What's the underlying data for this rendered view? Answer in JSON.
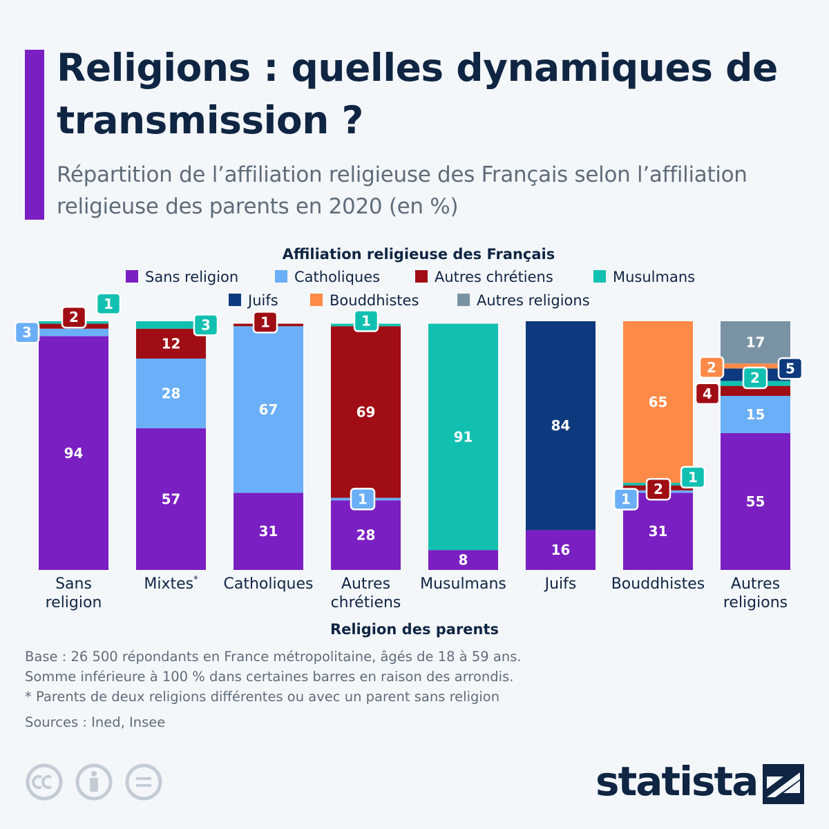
{
  "title": "Religions : quelles dynamiques de transmission ?",
  "subtitle": "Répartition de l’affiliation religieuse des Français selon l’affiliation religieuse des parents en 2020 (en %)",
  "chart_data": {
    "type": "bar",
    "stacked": true,
    "orientation": "vertical",
    "legend_title": "Affiliation religieuse des Français",
    "xlabel": "Religion des parents",
    "ylabel": "",
    "ylim": [
      0,
      100
    ],
    "grid": false,
    "categories": [
      "Sans religion",
      "Mixtes",
      "Catholiques",
      "Autres chrétiens",
      "Musulmans",
      "Juifs",
      "Bouddhistes",
      "Autres religions"
    ],
    "category_marks": [
      "",
      "*",
      "",
      "",
      "",
      "",
      "",
      ""
    ],
    "series": [
      {
        "name": "Sans religion",
        "color": "#7a1fc2",
        "values": [
          94,
          57,
          31,
          28,
          8,
          16,
          31,
          55
        ]
      },
      {
        "name": "Catholiques",
        "color": "#6aaff8",
        "values": [
          3,
          28,
          67,
          1,
          0,
          0,
          1,
          15
        ]
      },
      {
        "name": "Autres chrétiens",
        "color": "#a00d14",
        "values": [
          2,
          12,
          1,
          69,
          0,
          0,
          2,
          4
        ]
      },
      {
        "name": "Musulmans",
        "color": "#12c0b1",
        "values": [
          1,
          3,
          0,
          1,
          91,
          0,
          1,
          2
        ]
      },
      {
        "name": "Juifs",
        "color": "#0d3a7e",
        "values": [
          0,
          0,
          0,
          0,
          0,
          84,
          0,
          5
        ]
      },
      {
        "name": "Bouddhistes",
        "color": "#ff8a48",
        "values": [
          0,
          0,
          0,
          0,
          0,
          0,
          65,
          2
        ]
      },
      {
        "name": "Autres religions",
        "color": "#7a93a4",
        "values": [
          0,
          0,
          0,
          0,
          0,
          0,
          0,
          17
        ]
      }
    ]
  },
  "footnotes": [
    "Base : 26 500 répondants en France métropolitaine, âgés de 18 à 59 ans.",
    "Somme inférieure à 100 % dans certaines barres en raison des arrondis.",
    "* Parents de deux religions différentes ou avec un parent sans religion"
  ],
  "source": "Sources : Ined, Insee",
  "brand": "statista"
}
